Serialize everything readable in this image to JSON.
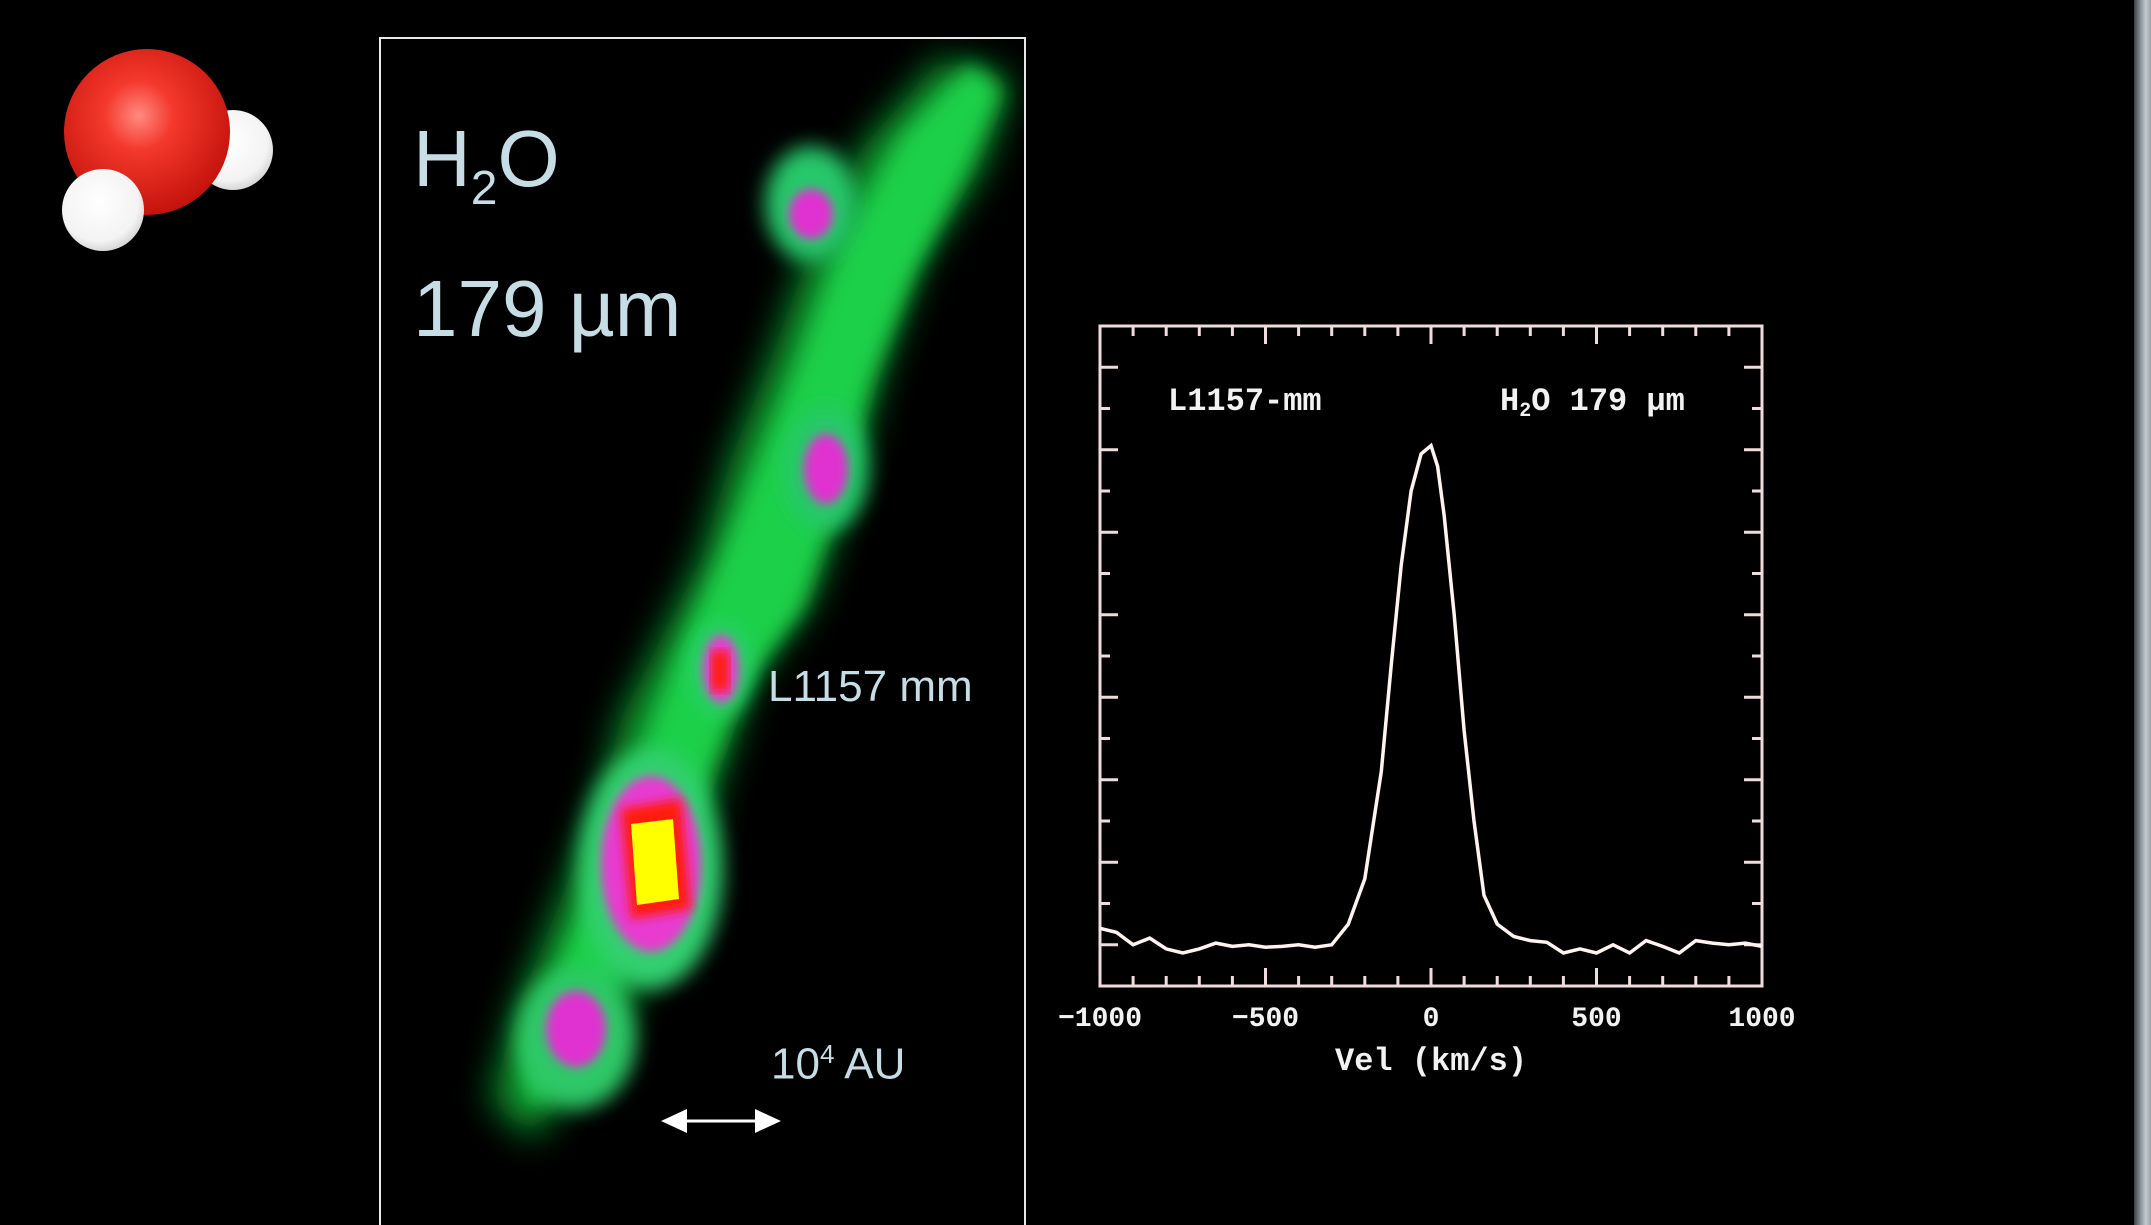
{
  "molecule": {
    "icon": "water-molecule-icon",
    "colors": {
      "oxygen": "#e8231e",
      "hydrogen": "#ffffff"
    }
  },
  "map": {
    "species_main": "H",
    "species_sub": "2",
    "species_end": "O",
    "wavelength": "179 µm",
    "source_label": "L1157 mm",
    "scale_main": "10",
    "scale_sup": "4",
    "scale_unit": " AU",
    "colormap": [
      "#00a83a",
      "#e41fd0",
      "#ff1010",
      "#ffff00"
    ]
  },
  "chart_data": {
    "type": "line",
    "title_left": "L1157-mm",
    "title_right_main": "H",
    "title_right_sub": "2",
    "title_right_end": "O 179 µm",
    "xlabel": "Vel (km/s)",
    "ylabel": "",
    "xlim": [
      -1000,
      1000
    ],
    "ylim": [
      -0.5,
      7.5
    ],
    "xticks": [
      -1000,
      -500,
      0,
      500,
      1000
    ],
    "series": [
      {
        "x": [
          -1000,
          -950,
          -900,
          -850,
          -800,
          -750,
          -700,
          -650,
          -600,
          -550,
          -500,
          -450,
          -400,
          -350,
          -300,
          -250,
          -200,
          -150,
          -120,
          -90,
          -60,
          -30,
          0,
          20,
          40,
          70,
          100,
          130,
          160,
          200,
          250,
          300,
          350,
          400,
          450,
          500,
          550,
          600,
          650,
          700,
          750,
          800,
          850,
          900,
          950,
          1000
        ],
        "y": [
          0.2,
          0.15,
          0.0,
          0.08,
          -0.05,
          -0.1,
          -0.05,
          0.02,
          -0.02,
          0.0,
          -0.03,
          -0.02,
          0.0,
          -0.03,
          0.0,
          0.25,
          0.8,
          2.1,
          3.4,
          4.6,
          5.5,
          5.95,
          6.05,
          5.8,
          5.2,
          4.0,
          2.6,
          1.5,
          0.6,
          0.25,
          0.1,
          0.05,
          0.03,
          -0.1,
          -0.05,
          -0.1,
          0.0,
          -0.1,
          0.05,
          -0.02,
          -0.1,
          0.05,
          0.02,
          0.0,
          0.02,
          -0.02
        ]
      }
    ]
  }
}
